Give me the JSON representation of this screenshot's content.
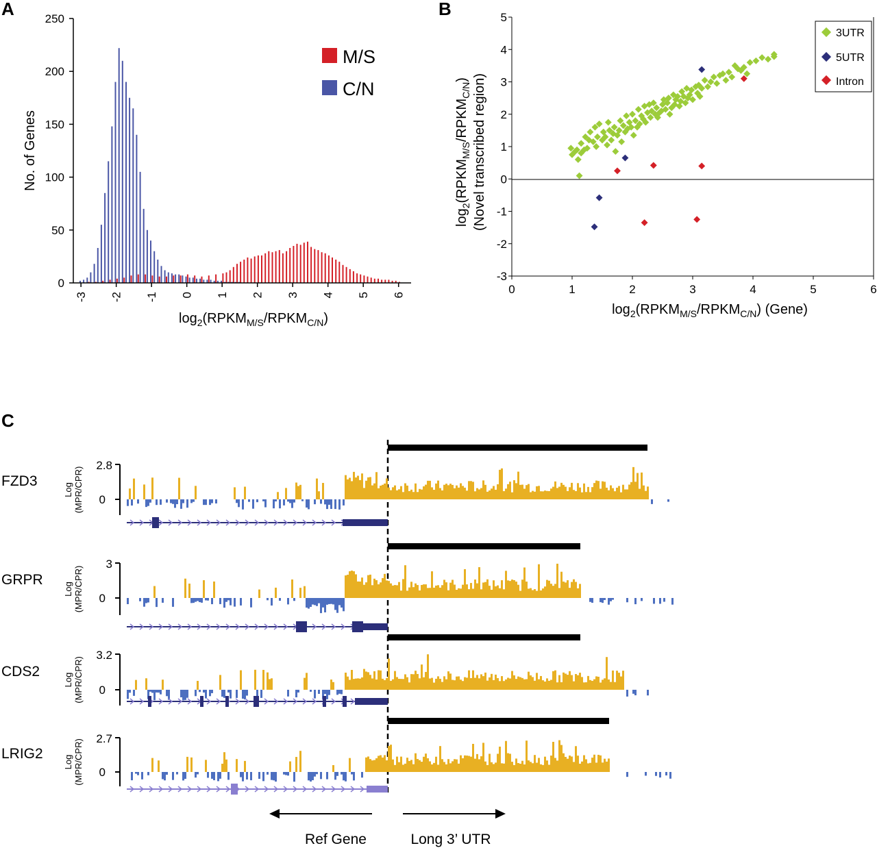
{
  "panels": {
    "a": {
      "letter": "A"
    },
    "b": {
      "letter": "B"
    },
    "c": {
      "letter": "C"
    }
  },
  "colors": {
    "ms": "#d42027",
    "cn": "#4a56a6",
    "utr3": "#9ccc3a",
    "utr5": "#2c2f7a",
    "intron": "#d42027",
    "track_pos": "#e8b023",
    "track_neg": "#4d6fc0",
    "gene_model": "#2c2f7a",
    "gene_model_light": "#8a7fd0"
  },
  "chart_data": [
    {
      "id": "histogram",
      "type": "bar",
      "ylabel": "No. of Genes",
      "xlabel": {
        "main": "log",
        "sub2": "2",
        "paren_open": "(RPKM",
        "sub_ms": "M/S",
        "slash": "/RPKM",
        "sub_cn": "C/N",
        "paren_close": ")"
      },
      "xlim": [
        -3.1,
        6.2
      ],
      "ylim": [
        0,
        250
      ],
      "xticks": [
        "-3",
        "-2",
        "-1",
        "0",
        "1",
        "2",
        "3",
        "4",
        "5",
        "6"
      ],
      "xtick_values": [
        -3,
        -2,
        -1,
        0,
        1,
        2,
        3,
        4,
        5,
        6
      ],
      "yticks": [
        "0",
        "50",
        "100",
        "150",
        "200",
        "250"
      ],
      "ytick_values": [
        0,
        50,
        100,
        150,
        200,
        250
      ],
      "bin_width": 0.1,
      "legend": [
        {
          "name": "M/S",
          "color": "#d42027"
        },
        {
          "name": "C/N",
          "color": "#4a56a6"
        }
      ],
      "legend_position": "top-right",
      "series": [
        {
          "name": "C/N",
          "x": [
            -3.0,
            -2.9,
            -2.8,
            -2.7,
            -2.6,
            -2.5,
            -2.4,
            -2.3,
            -2.2,
            -2.1,
            -2.0,
            -1.9,
            -1.8,
            -1.7,
            -1.6,
            -1.5,
            -1.4,
            -1.3,
            -1.2,
            -1.1,
            -1.0,
            -0.9,
            -0.8,
            -0.7,
            -0.6,
            -0.5,
            -0.4,
            -0.3,
            -0.2,
            -0.1,
            0.0,
            0.1,
            0.2,
            0.3,
            0.4,
            0.5,
            0.6,
            0.7,
            0.8,
            0.9,
            1.0,
            1.1,
            1.2,
            1.3,
            1.4,
            1.5
          ],
          "values": [
            2,
            3,
            5,
            10,
            18,
            33,
            55,
            85,
            115,
            148,
            190,
            222,
            210,
            190,
            175,
            165,
            140,
            105,
            70,
            50,
            40,
            30,
            22,
            16,
            12,
            10,
            9,
            8,
            8,
            7,
            6,
            5,
            5,
            4,
            4,
            3,
            3,
            3,
            2,
            2,
            2,
            1,
            1,
            1,
            1,
            1
          ]
        },
        {
          "name": "M/S",
          "x": [
            -3.0,
            -2.8,
            -2.6,
            -2.4,
            -2.2,
            -2.0,
            -1.8,
            -1.6,
            -1.4,
            -1.2,
            -1.0,
            -0.8,
            -0.6,
            -0.4,
            -0.2,
            0.0,
            0.2,
            0.4,
            0.6,
            0.8,
            1.0,
            1.1,
            1.2,
            1.3,
            1.4,
            1.5,
            1.6,
            1.7,
            1.8,
            1.9,
            2.0,
            2.1,
            2.2,
            2.3,
            2.4,
            2.5,
            2.6,
            2.7,
            2.8,
            2.9,
            3.0,
            3.1,
            3.2,
            3.3,
            3.4,
            3.5,
            3.6,
            3.7,
            3.8,
            3.9,
            4.0,
            4.1,
            4.2,
            4.3,
            4.4,
            4.5,
            4.6,
            4.7,
            4.8,
            4.9,
            5.0,
            5.1,
            5.2,
            5.3,
            5.4,
            5.5,
            5.6,
            5.7,
            5.8,
            5.9,
            6.0
          ],
          "values": [
            0,
            1,
            1,
            2,
            3,
            4,
            5,
            7,
            8,
            8,
            7,
            6,
            6,
            7,
            7,
            8,
            7,
            6,
            7,
            8,
            9,
            10,
            12,
            15,
            18,
            20,
            22,
            24,
            23,
            25,
            26,
            26,
            28,
            30,
            29,
            30,
            31,
            28,
            30,
            33,
            35,
            37,
            36,
            38,
            39,
            34,
            32,
            31,
            29,
            28,
            26,
            24,
            22,
            20,
            17,
            15,
            13,
            11,
            9,
            8,
            7,
            6,
            5,
            4,
            4,
            3,
            3,
            3,
            2,
            2,
            1
          ]
        }
      ]
    },
    {
      "id": "scatter",
      "type": "scatter",
      "xlabel": {
        "main": "log",
        "sub2": "2",
        "paren_open": "(RPKM",
        "sub_ms": "M/S",
        "slash": "/RPKM",
        "sub_cn": "C/N",
        "paren_close": ") (Gene)"
      },
      "ylabel": {
        "main": "log",
        "sub2": "2",
        "paren_open": "(RPKM",
        "sub_ms": "M/S",
        "slash": "/RPKM",
        "sub_cn": "C/N",
        "paren_close": ")",
        "line2": "(Novel transcribed region)"
      },
      "xlim": [
        0,
        6
      ],
      "ylim": [
        -3,
        5
      ],
      "xticks": [
        "0",
        "1",
        "2",
        "3",
        "4",
        "5",
        "6"
      ],
      "xtick_values": [
        0,
        1,
        2,
        3,
        4,
        5,
        6
      ],
      "yticks": [
        "-3",
        "-2",
        "-1",
        "0",
        "1",
        "2",
        "3",
        "4",
        "5"
      ],
      "ytick_values": [
        -3,
        -2,
        -1,
        0,
        1,
        2,
        3,
        4,
        5
      ],
      "legend_position": "top-right",
      "series": [
        {
          "name": "3UTR",
          "color": "#9ccc3a",
          "points": [
            [
              0.98,
              0.95
            ],
            [
              1.0,
              0.75
            ],
            [
              1.05,
              0.85
            ],
            [
              1.08,
              0.9
            ],
            [
              1.1,
              0.6
            ],
            [
              1.12,
              0.1
            ],
            [
              1.15,
              0.8
            ],
            [
              1.15,
              1.1
            ],
            [
              1.2,
              0.9
            ],
            [
              1.22,
              1.3
            ],
            [
              1.25,
              0.95
            ],
            [
              1.28,
              1.2
            ],
            [
              1.3,
              1.45
            ],
            [
              1.35,
              1.15
            ],
            [
              1.38,
              1.6
            ],
            [
              1.4,
              1.0
            ],
            [
              1.42,
              1.3
            ],
            [
              1.45,
              1.7
            ],
            [
              1.5,
              1.2
            ],
            [
              1.52,
              1.45
            ],
            [
              1.55,
              1.3
            ],
            [
              1.58,
              1.05
            ],
            [
              1.6,
              1.75
            ],
            [
              1.62,
              1.5
            ],
            [
              1.65,
              1.2
            ],
            [
              1.68,
              1.4
            ],
            [
              1.7,
              1.6
            ],
            [
              1.72,
              0.85
            ],
            [
              1.75,
              1.35
            ],
            [
              1.78,
              1.5
            ],
            [
              1.8,
              1.8
            ],
            [
              1.82,
              1.15
            ],
            [
              1.85,
              1.65
            ],
            [
              1.88,
              1.45
            ],
            [
              1.9,
              1.95
            ],
            [
              1.92,
              1.55
            ],
            [
              1.95,
              1.75
            ],
            [
              1.98,
              1.6
            ],
            [
              2.0,
              2.0
            ],
            [
              2.02,
              1.35
            ],
            [
              2.05,
              1.8
            ],
            [
              2.08,
              1.6
            ],
            [
              2.1,
              2.15
            ],
            [
              2.12,
              1.7
            ],
            [
              2.15,
              1.95
            ],
            [
              2.18,
              1.85
            ],
            [
              2.2,
              2.25
            ],
            [
              2.22,
              1.75
            ],
            [
              2.25,
              2.05
            ],
            [
              2.28,
              2.3
            ],
            [
              2.3,
              1.9
            ],
            [
              2.32,
              2.1
            ],
            [
              2.35,
              2.35
            ],
            [
              2.38,
              2.0
            ],
            [
              2.4,
              2.2
            ],
            [
              2.42,
              1.9
            ],
            [
              2.45,
              2.05
            ],
            [
              2.48,
              2.1
            ],
            [
              2.5,
              2.3
            ],
            [
              2.52,
              2.45
            ],
            [
              2.55,
              2.15
            ],
            [
              2.58,
              2.35
            ],
            [
              2.6,
              2.5
            ],
            [
              2.62,
              2.0
            ],
            [
              2.65,
              2.2
            ],
            [
              2.68,
              2.6
            ],
            [
              2.7,
              2.3
            ],
            [
              2.72,
              2.45
            ],
            [
              2.75,
              2.55
            ],
            [
              2.78,
              2.25
            ],
            [
              2.8,
              2.4
            ],
            [
              2.82,
              2.7
            ],
            [
              2.85,
              2.55
            ],
            [
              2.88,
              2.35
            ],
            [
              2.9,
              2.8
            ],
            [
              2.92,
              2.5
            ],
            [
              2.95,
              2.6
            ],
            [
              2.98,
              2.75
            ],
            [
              3.0,
              2.45
            ],
            [
              3.05,
              2.85
            ],
            [
              3.08,
              2.65
            ],
            [
              3.1,
              2.9
            ],
            [
              3.12,
              2.55
            ],
            [
              3.15,
              2.8
            ],
            [
              3.2,
              3.05
            ],
            [
              3.25,
              2.85
            ],
            [
              3.3,
              3.0
            ],
            [
              3.35,
              3.15
            ],
            [
              3.4,
              2.95
            ],
            [
              3.45,
              3.2
            ],
            [
              3.5,
              3.25
            ],
            [
              3.55,
              3.05
            ],
            [
              3.6,
              3.3
            ],
            [
              3.65,
              3.15
            ],
            [
              3.7,
              3.5
            ],
            [
              3.75,
              3.4
            ],
            [
              3.8,
              3.35
            ],
            [
              3.85,
              3.45
            ],
            [
              3.9,
              3.25
            ],
            [
              3.95,
              3.6
            ],
            [
              4.05,
              3.65
            ],
            [
              4.15,
              3.75
            ],
            [
              4.25,
              3.7
            ],
            [
              4.35,
              3.85
            ],
            [
              4.35,
              3.78
            ]
          ]
        },
        {
          "name": "5UTR",
          "color": "#2c2f7a",
          "points": [
            [
              3.15,
              3.38
            ],
            [
              1.88,
              0.65
            ],
            [
              1.45,
              -0.58
            ],
            [
              1.37,
              -1.48
            ]
          ]
        },
        {
          "name": "Intron",
          "color": "#d42027",
          "points": [
            [
              3.85,
              3.1
            ],
            [
              1.75,
              0.25
            ],
            [
              2.35,
              0.42
            ],
            [
              3.15,
              0.4
            ],
            [
              2.2,
              -1.35
            ],
            [
              3.07,
              -1.25
            ]
          ]
        }
      ]
    }
  ],
  "tracks": {
    "ylabel_line1": "Log",
    "ylabel_line2": "(MPR/CPR)",
    "zero_label": "0",
    "genes": [
      {
        "name": "FZD3",
        "max_label": "2.8"
      },
      {
        "name": "GRPR",
        "max_label": "3"
      },
      {
        "name": "CDS2",
        "max_label": "3.2"
      },
      {
        "name": "LRIG2",
        "max_label": "2.7"
      }
    ],
    "ref_gene_label": "Ref Gene",
    "long_utr_label": "Long 3’ UTR"
  }
}
